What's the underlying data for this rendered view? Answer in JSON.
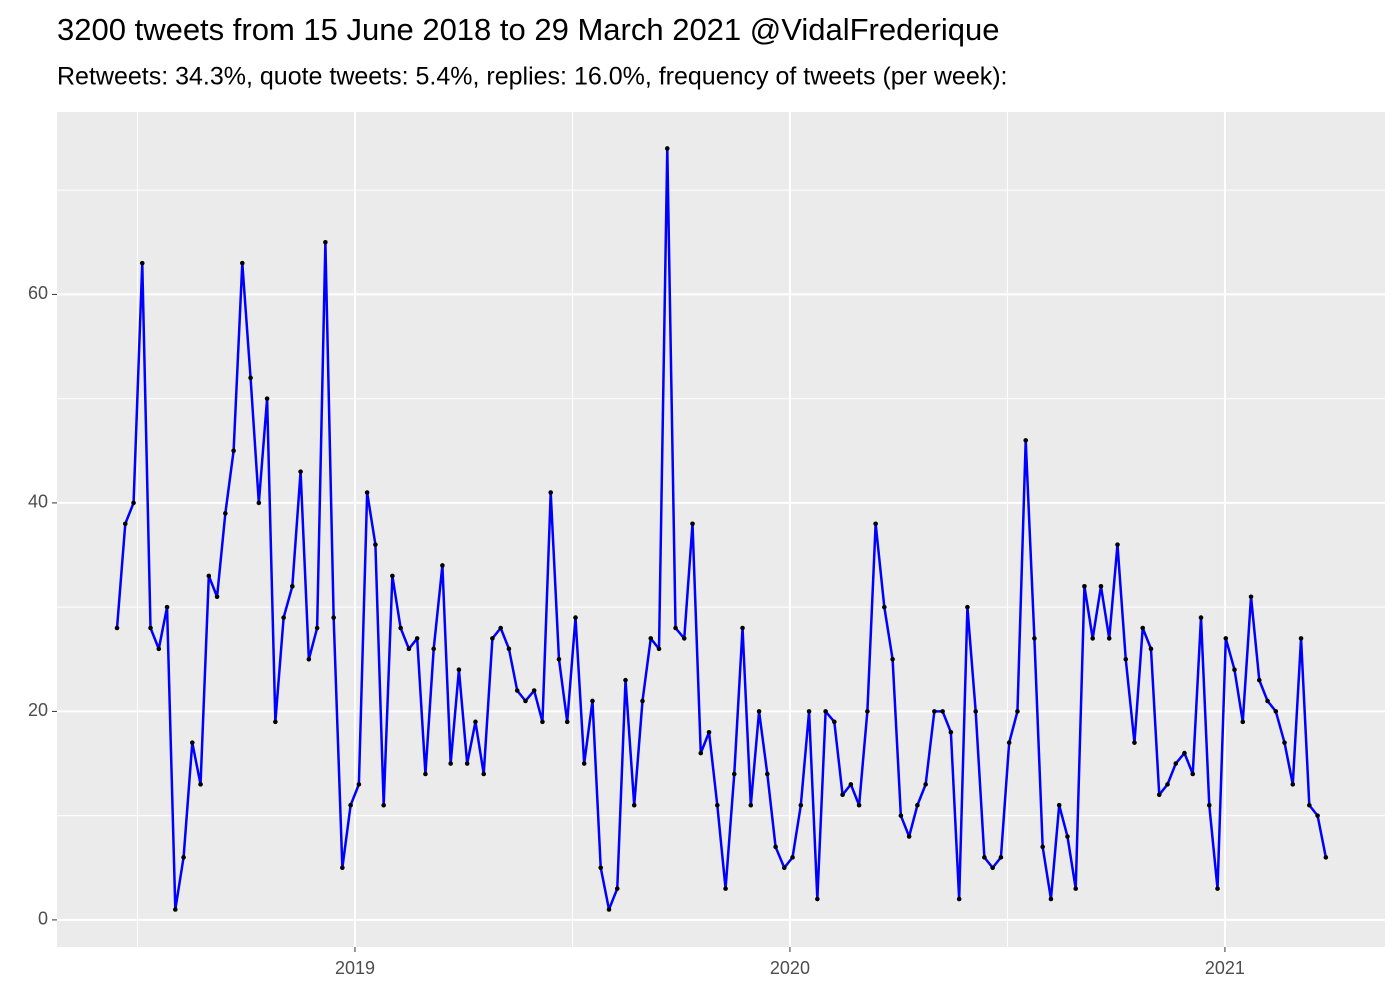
{
  "chart_data": {
    "type": "line",
    "title": "3200 tweets from 15 June 2018 to 29 March 2021 @VidalFrederique",
    "subtitle": "Retweets: 34.3%, quote tweets: 5.4%, replies: 16.0%, frequency of tweets (per week):",
    "x": [
      2018.453,
      2018.472,
      2018.491,
      2018.511,
      2018.53,
      2018.549,
      2018.568,
      2018.587,
      2018.606,
      2018.626,
      2018.645,
      2018.664,
      2018.683,
      2018.702,
      2018.721,
      2018.741,
      2018.76,
      2018.779,
      2018.798,
      2018.817,
      2018.836,
      2018.856,
      2018.875,
      2018.894,
      2018.913,
      2018.932,
      2018.951,
      2018.971,
      2018.99,
      2019.009,
      2019.028,
      2019.047,
      2019.066,
      2019.086,
      2019.105,
      2019.124,
      2019.143,
      2019.162,
      2019.181,
      2019.201,
      2019.22,
      2019.239,
      2019.258,
      2019.277,
      2019.296,
      2019.316,
      2019.335,
      2019.354,
      2019.373,
      2019.392,
      2019.412,
      2019.431,
      2019.45,
      2019.469,
      2019.488,
      2019.507,
      2019.527,
      2019.546,
      2019.565,
      2019.584,
      2019.603,
      2019.622,
      2019.642,
      2019.661,
      2019.68,
      2019.699,
      2019.718,
      2019.737,
      2019.757,
      2019.776,
      2019.795,
      2019.814,
      2019.833,
      2019.852,
      2019.872,
      2019.891,
      2019.91,
      2019.929,
      2019.948,
      2019.967,
      2019.987,
      2020.006,
      2020.025,
      2020.044,
      2020.063,
      2020.082,
      2020.102,
      2020.121,
      2020.14,
      2020.159,
      2020.178,
      2020.197,
      2020.217,
      2020.236,
      2020.255,
      2020.274,
      2020.293,
      2020.312,
      2020.332,
      2020.351,
      2020.37,
      2020.389,
      2020.408,
      2020.427,
      2020.447,
      2020.466,
      2020.485,
      2020.504,
      2020.523,
      2020.542,
      2020.562,
      2020.581,
      2020.6,
      2020.619,
      2020.638,
      2020.657,
      2020.677,
      2020.696,
      2020.715,
      2020.734,
      2020.753,
      2020.772,
      2020.792,
      2020.811,
      2020.83,
      2020.849,
      2020.868,
      2020.887,
      2020.907,
      2020.926,
      2020.945,
      2020.964,
      2020.983,
      2021.002,
      2021.022,
      2021.041,
      2021.06,
      2021.079,
      2021.098,
      2021.117,
      2021.137,
      2021.156,
      2021.175,
      2021.194,
      2021.213,
      2021.232
    ],
    "values": [
      28,
      38,
      40,
      63,
      28,
      26,
      30,
      1,
      6,
      17,
      13,
      33,
      31,
      39,
      45,
      63,
      52,
      40,
      50,
      19,
      29,
      32,
      43,
      25,
      28,
      65,
      29,
      5,
      11,
      13,
      41,
      36,
      11,
      33,
      28,
      26,
      27,
      14,
      26,
      34,
      15,
      24,
      15,
      19,
      14,
      27,
      28,
      26,
      22,
      21,
      22,
      19,
      41,
      25,
      19,
      29,
      15,
      21,
      5,
      1,
      3,
      23,
      11,
      21,
      27,
      26,
      74,
      28,
      27,
      38,
      16,
      18,
      11,
      3,
      14,
      28,
      11,
      20,
      14,
      7,
      5,
      6,
      11,
      20,
      2,
      20,
      19,
      12,
      13,
      11,
      20,
      38,
      30,
      25,
      10,
      8,
      11,
      13,
      20,
      20,
      18,
      2,
      30,
      20,
      6,
      5,
      6,
      17,
      20,
      46,
      27,
      7,
      2,
      11,
      8,
      3,
      32,
      27,
      32,
      27,
      36,
      25,
      17,
      28,
      26,
      12,
      13,
      15,
      16,
      14,
      29,
      11,
      3,
      27,
      24,
      19,
      31,
      23,
      21,
      20,
      17,
      13,
      27,
      11,
      10,
      6
    ],
    "color": "#0000ff",
    "point_color": "#000000",
    "xlim": [
      2018.315,
      2021.368
    ],
    "xticks": [
      2019,
      2020,
      2021
    ],
    "ylim": [
      -2.6,
      77.5
    ],
    "yticks": [
      0,
      20,
      40,
      60
    ],
    "grid": true
  }
}
